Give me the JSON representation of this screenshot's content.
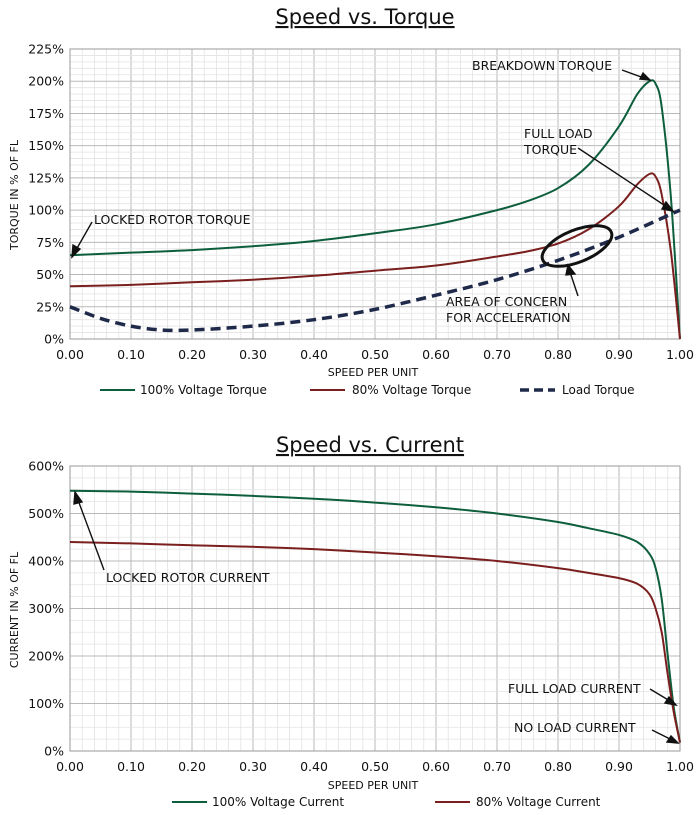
{
  "colors": {
    "green": "#0d5e3c",
    "red": "#7a1e1e",
    "load": "#1f2a4a",
    "grid_major": "#b9b9b9",
    "grid_minor": "#e3e3e3"
  },
  "chart_data": [
    {
      "type": "line",
      "title": "Speed vs. Torque",
      "xlabel": "SPEED PER UNIT",
      "ylabel": "TORQUE IN % OF FL",
      "xlim": [
        0,
        1
      ],
      "ylim": [
        0,
        225
      ],
      "grid": true,
      "legend_position": "bottom",
      "x_ticks": [
        "0.00",
        "0.10",
        "0.20",
        "0.30",
        "0.40",
        "0.50",
        "0.60",
        "0.70",
        "0.80",
        "0.90",
        "1.00"
      ],
      "y_ticks": [
        "0%",
        "25%",
        "50%",
        "75%",
        "100%",
        "125%",
        "150%",
        "175%",
        "200%",
        "225%"
      ],
      "series": [
        {
          "name": "100% Voltage Torque",
          "style": "solid",
          "color": "#0d5e3c",
          "x": [
            0,
            0.1,
            0.2,
            0.3,
            0.4,
            0.5,
            0.6,
            0.7,
            0.75,
            0.8,
            0.85,
            0.9,
            0.93,
            0.95,
            0.96,
            0.97,
            0.985,
            1.0
          ],
          "y": [
            65,
            67,
            69,
            72,
            76,
            82,
            89,
            100,
            107,
            117,
            135,
            165,
            190,
            200,
            198,
            180,
            110,
            0
          ]
        },
        {
          "name": "80% Voltage Torque",
          "style": "solid",
          "color": "#7a1e1e",
          "x": [
            0,
            0.1,
            0.2,
            0.3,
            0.4,
            0.5,
            0.6,
            0.7,
            0.75,
            0.8,
            0.85,
            0.9,
            0.93,
            0.95,
            0.96,
            0.97,
            0.985,
            1.0
          ],
          "y": [
            41,
            42,
            44,
            46,
            49,
            53,
            57,
            64,
            68,
            74,
            85,
            103,
            120,
            128,
            126,
            112,
            68,
            0
          ]
        },
        {
          "name": "Load Torque",
          "style": "dashed",
          "color": "#1f2a4a",
          "x": [
            0,
            0.05,
            0.1,
            0.15,
            0.2,
            0.3,
            0.4,
            0.5,
            0.6,
            0.7,
            0.8,
            0.9,
            1.0
          ],
          "y": [
            25,
            16,
            10,
            7,
            7,
            10,
            15,
            23,
            34,
            46,
            61,
            79,
            100
          ]
        }
      ],
      "annotations": [
        {
          "text": "BREAKDOWN TORQUE",
          "x": 0.95,
          "y": 200
        },
        {
          "text": "FULL LOAD",
          "x": 0.985,
          "y": 100
        },
        {
          "text": "TORQUE",
          "x": 0.985,
          "y": 100
        },
        {
          "text": "LOCKED ROTOR TORQUE",
          "x": 0.0,
          "y": 65
        },
        {
          "text": "AREA OF CONCERN",
          "x": 0.83,
          "y": 70
        },
        {
          "text": "FOR ACCELERATION",
          "x": 0.83,
          "y": 70
        }
      ]
    },
    {
      "type": "line",
      "title": "Speed vs. Current",
      "xlabel": "SPEED PER UNIT",
      "ylabel": "CURRENT IN % OF FL",
      "xlim": [
        0,
        1
      ],
      "ylim": [
        0,
        600
      ],
      "grid": true,
      "legend_position": "bottom",
      "x_ticks": [
        "0.00",
        "0.10",
        "0.20",
        "0.30",
        "0.40",
        "0.50",
        "0.60",
        "0.70",
        "0.80",
        "0.90",
        "1.00"
      ],
      "y_ticks": [
        "0%",
        "100%",
        "200%",
        "300%",
        "400%",
        "500%",
        "600%"
      ],
      "series": [
        {
          "name": "100% Voltage Current",
          "style": "solid",
          "color": "#0d5e3c",
          "x": [
            0,
            0.1,
            0.2,
            0.3,
            0.4,
            0.5,
            0.6,
            0.7,
            0.8,
            0.85,
            0.9,
            0.93,
            0.95,
            0.96,
            0.97,
            0.98,
            0.99,
            1.0
          ],
          "y": [
            548,
            546,
            542,
            537,
            531,
            523,
            513,
            500,
            482,
            469,
            455,
            440,
            415,
            385,
            320,
            200,
            90,
            18
          ]
        },
        {
          "name": "80% Voltage Current",
          "style": "solid",
          "color": "#7a1e1e",
          "x": [
            0,
            0.1,
            0.2,
            0.3,
            0.4,
            0.5,
            0.6,
            0.7,
            0.8,
            0.85,
            0.9,
            0.93,
            0.95,
            0.96,
            0.97,
            0.98,
            0.99,
            1.0
          ],
          "y": [
            440,
            437,
            433,
            430,
            425,
            418,
            410,
            400,
            385,
            375,
            364,
            352,
            330,
            300,
            250,
            160,
            80,
            18
          ]
        }
      ],
      "annotations": [
        {
          "text": "LOCKED ROTOR CURRENT",
          "x": 0.0,
          "y": 548
        },
        {
          "text": "FULL LOAD CURRENT",
          "x": 0.995,
          "y": 100
        },
        {
          "text": "NO LOAD CURRENT",
          "x": 1.0,
          "y": 18
        }
      ]
    }
  ]
}
